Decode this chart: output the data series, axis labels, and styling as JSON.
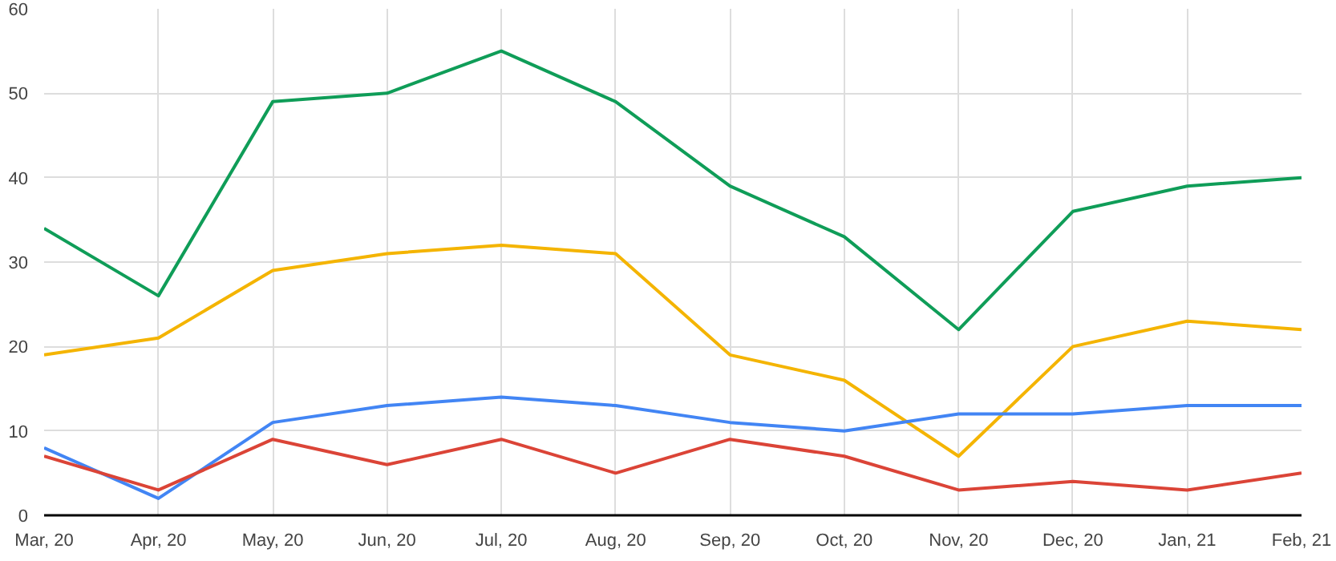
{
  "chart_data": {
    "type": "line",
    "categories": [
      "Mar, 20",
      "Apr, 20",
      "May, 20",
      "Jun, 20",
      "Jul, 20",
      "Aug, 20",
      "Sep, 20",
      "Oct, 20",
      "Nov, 20",
      "Dec, 20",
      "Jan, 21",
      "Feb, 21"
    ],
    "series": [
      {
        "color": "#0f9d58",
        "values": [
          34,
          26,
          49,
          50,
          55,
          49,
          39,
          33,
          22,
          36,
          39,
          40
        ]
      },
      {
        "color": "#f4b400",
        "values": [
          19,
          21,
          29,
          31,
          32,
          31,
          19,
          16,
          7,
          20,
          23,
          22
        ]
      },
      {
        "color": "#4285f4",
        "values": [
          8,
          2,
          11,
          13,
          14,
          13,
          11,
          10,
          12,
          12,
          13,
          13
        ]
      },
      {
        "color": "#db4437",
        "values": [
          7,
          3,
          9,
          6,
          9,
          5,
          9,
          7,
          3,
          4,
          3,
          5
        ]
      }
    ],
    "ylim": [
      0,
      60
    ],
    "yticks": [
      0,
      10,
      20,
      30,
      40,
      50,
      60
    ],
    "grid": true,
    "line_style": "solid",
    "marker": "none"
  }
}
